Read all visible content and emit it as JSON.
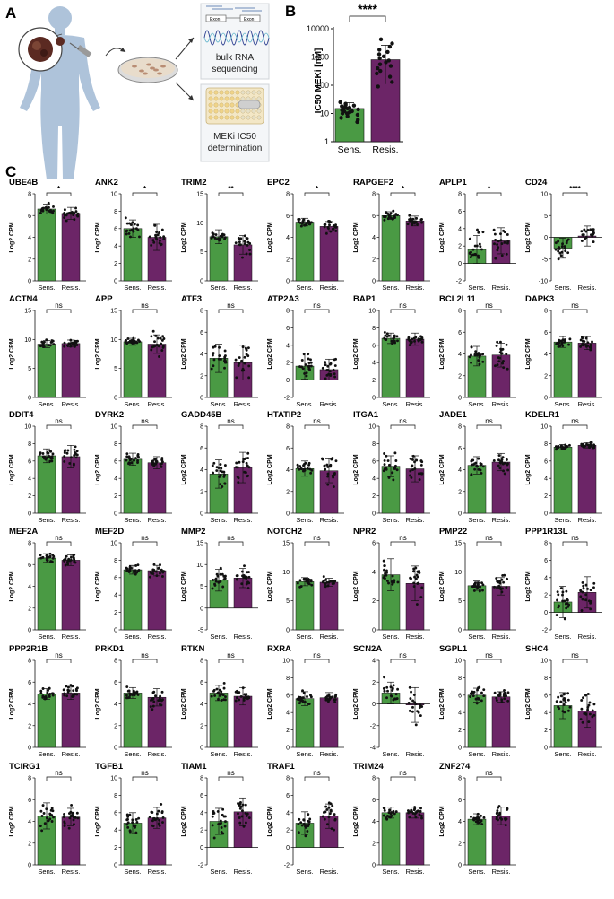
{
  "colors": {
    "sens": "#4a9a44",
    "resis": "#6c2567",
    "text": "#111111",
    "body": "#aec3da",
    "dish": "#e8dccb",
    "well": "#f0d48a"
  },
  "panel_a": {
    "letter": "A",
    "labels": {
      "rna_line1": "bulk RNA",
      "rna_line2": "sequencing",
      "ic50_line1": "MEKi IC50",
      "ic50_line2": "determination",
      "exon1": "Exon",
      "exon2": "Exon"
    }
  },
  "panel_b": {
    "letter": "B",
    "chart_data": {
      "type": "bar",
      "title": "",
      "ylabel": "IC50 MEKi [nM]",
      "yscale": "log",
      "ylim": [
        1,
        10000
      ],
      "ytick_labels": [
        "1",
        "10",
        "100",
        "1000",
        "10000"
      ],
      "categories": [
        "Sens.",
        "Resis."
      ],
      "values": [
        15,
        800
      ],
      "sd_low": [
        9,
        110
      ],
      "sd_high": [
        24,
        2600
      ],
      "points": [
        [
          5,
          6,
          7,
          8,
          9,
          10,
          10,
          11,
          12,
          12,
          13,
          14,
          15,
          15,
          16,
          17,
          18,
          19,
          20,
          22,
          25
        ],
        [
          90,
          130,
          200,
          260,
          320,
          400,
          480,
          550,
          650,
          750,
          900,
          1050,
          1250,
          1500,
          1800,
          2300,
          3000,
          4200
        ]
      ],
      "significance": "****"
    }
  },
  "panel_c": {
    "letter": "C",
    "ylabel": "Log2 CPM",
    "categories": [
      "Sens.",
      "Resis."
    ],
    "chart_data": [
      {
        "type": "bar",
        "title": "UBE4B",
        "ylim": [
          0,
          8
        ],
        "ticks": [
          "0",
          "2",
          "4",
          "6",
          "8"
        ],
        "values": [
          6.6,
          6.2
        ],
        "sd": [
          0.45,
          0.55
        ],
        "spread": [
          0.5,
          0.6
        ],
        "sig": "*"
      },
      {
        "type": "bar",
        "title": "ANK2",
        "ylim": [
          0,
          10
        ],
        "ticks": [
          "0",
          "2",
          "4",
          "6",
          "8",
          "10"
        ],
        "values": [
          6.0,
          5.0
        ],
        "sd": [
          1.0,
          1.5
        ],
        "spread": [
          1.0,
          1.6
        ],
        "sig": "*"
      },
      {
        "type": "bar",
        "title": "TRIM2",
        "ylim": [
          0,
          15
        ],
        "ticks": [
          "0",
          "5",
          "10",
          "15"
        ],
        "values": [
          7.6,
          6.2
        ],
        "sd": [
          1.2,
          1.6
        ],
        "spread": [
          1.2,
          1.7
        ],
        "sig": "**"
      },
      {
        "type": "bar",
        "title": "EPC2",
        "ylim": [
          0,
          8
        ],
        "ticks": [
          "0",
          "2",
          "4",
          "6",
          "8"
        ],
        "values": [
          5.4,
          5.0
        ],
        "sd": [
          0.35,
          0.45
        ],
        "spread": [
          0.4,
          0.5
        ],
        "sig": "*"
      },
      {
        "type": "bar",
        "title": "RAPGEF2",
        "ylim": [
          0,
          8
        ],
        "ticks": [
          "0",
          "2",
          "4",
          "6",
          "8"
        ],
        "values": [
          6.0,
          5.5
        ],
        "sd": [
          0.35,
          0.45
        ],
        "spread": [
          0.35,
          0.45
        ],
        "sig": "*"
      },
      {
        "type": "bar",
        "title": "APLP1",
        "ylim": [
          -2,
          8
        ],
        "ticks": [
          "-2",
          "0",
          "2",
          "4",
          "6",
          "8"
        ],
        "values": [
          1.6,
          2.6
        ],
        "sd": [
          1.6,
          1.5
        ],
        "spread": [
          1.7,
          1.6
        ],
        "sig": "*"
      },
      {
        "type": "bar",
        "title": "CD24",
        "ylim": [
          -10,
          10
        ],
        "ticks": [
          "-10",
          "-5",
          "0",
          "5",
          "10"
        ],
        "values": [
          -2.5,
          0.3
        ],
        "sd": [
          2.3,
          2.3
        ],
        "spread": [
          2.5,
          2.6
        ],
        "sig": "****"
      },
      {
        "type": "bar",
        "title": "ACTN4",
        "ylim": [
          0,
          15
        ],
        "ticks": [
          "0",
          "5",
          "10",
          "15"
        ],
        "values": [
          9.2,
          9.3
        ],
        "sd": [
          0.6,
          0.6
        ],
        "spread": [
          0.6,
          0.6
        ],
        "sig": "ns"
      },
      {
        "type": "bar",
        "title": "APP",
        "ylim": [
          0,
          15
        ],
        "ticks": [
          "0",
          "5",
          "10",
          "15"
        ],
        "values": [
          9.6,
          9.2
        ],
        "sd": [
          0.6,
          1.6
        ],
        "spread": [
          0.6,
          1.8
        ],
        "sig": "ns"
      },
      {
        "type": "bar",
        "title": "ATF3",
        "ylim": [
          0,
          8
        ],
        "ticks": [
          "0",
          "2",
          "4",
          "6",
          "8"
        ],
        "values": [
          3.6,
          3.2
        ],
        "sd": [
          1.3,
          1.6
        ],
        "spread": [
          1.3,
          1.6
        ],
        "sig": "ns"
      },
      {
        "type": "bar",
        "title": "ATP2A3",
        "ylim": [
          -2,
          8
        ],
        "ticks": [
          "-2",
          "0",
          "2",
          "4",
          "6",
          "8"
        ],
        "values": [
          1.6,
          1.2
        ],
        "sd": [
          1.5,
          1.2
        ],
        "spread": [
          1.4,
          1.2
        ],
        "sig": "ns"
      },
      {
        "type": "bar",
        "title": "BAP1",
        "ylim": [
          0,
          10
        ],
        "ticks": [
          "0",
          "2",
          "4",
          "6",
          "8",
          "10"
        ],
        "values": [
          6.8,
          6.7
        ],
        "sd": [
          0.6,
          0.7
        ],
        "spread": [
          0.6,
          0.7
        ],
        "sig": "ns"
      },
      {
        "type": "bar",
        "title": "BCL2L11",
        "ylim": [
          0,
          8
        ],
        "ticks": [
          "0",
          "2",
          "4",
          "6",
          "8"
        ],
        "values": [
          3.8,
          3.9
        ],
        "sd": [
          0.9,
          1.1
        ],
        "spread": [
          0.9,
          1.1
        ],
        "sig": "ns"
      },
      {
        "type": "bar",
        "title": "DAPK3",
        "ylim": [
          0,
          8
        ],
        "ticks": [
          "0",
          "2",
          "4",
          "6",
          "8"
        ],
        "values": [
          5.1,
          5.0
        ],
        "sd": [
          0.5,
          0.6
        ],
        "spread": [
          0.5,
          0.6
        ],
        "sig": "ns"
      },
      {
        "type": "bar",
        "title": "DDIT4",
        "ylim": [
          0,
          10
        ],
        "ticks": [
          "0",
          "2",
          "4",
          "6",
          "8",
          "10"
        ],
        "values": [
          6.6,
          6.5
        ],
        "sd": [
          0.8,
          1.3
        ],
        "spread": [
          0.8,
          1.3
        ],
        "sig": "ns"
      },
      {
        "type": "bar",
        "title": "DYRK2",
        "ylim": [
          0,
          10
        ],
        "ticks": [
          "0",
          "2",
          "4",
          "6",
          "8",
          "10"
        ],
        "values": [
          6.2,
          5.8
        ],
        "sd": [
          0.7,
          0.7
        ],
        "spread": [
          0.7,
          0.7
        ],
        "sig": "ns"
      },
      {
        "type": "bar",
        "title": "GADD45B",
        "ylim": [
          0,
          8
        ],
        "ticks": [
          "0",
          "2",
          "4",
          "6",
          "8"
        ],
        "values": [
          3.6,
          4.2
        ],
        "sd": [
          1.3,
          1.4
        ],
        "spread": [
          1.4,
          1.4
        ],
        "sig": "ns"
      },
      {
        "type": "bar",
        "title": "HTATIP2",
        "ylim": [
          0,
          8
        ],
        "ticks": [
          "0",
          "2",
          "4",
          "6",
          "8"
        ],
        "values": [
          4.1,
          3.9
        ],
        "sd": [
          0.7,
          1.1
        ],
        "spread": [
          0.7,
          1.3
        ],
        "sig": "ns"
      },
      {
        "type": "bar",
        "title": "ITGA1",
        "ylim": [
          0,
          10
        ],
        "ticks": [
          "0",
          "2",
          "4",
          "6",
          "8",
          "10"
        ],
        "values": [
          5.4,
          5.1
        ],
        "sd": [
          1.2,
          1.5
        ],
        "spread": [
          1.2,
          1.5
        ],
        "sig": "ns"
      },
      {
        "type": "bar",
        "title": "JADE1",
        "ylim": [
          0,
          8
        ],
        "ticks": [
          "0",
          "2",
          "4",
          "6",
          "8"
        ],
        "values": [
          4.4,
          4.7
        ],
        "sd": [
          0.8,
          0.8
        ],
        "spread": [
          0.8,
          0.8
        ],
        "sig": "ns"
      },
      {
        "type": "bar",
        "title": "KDELR1",
        "ylim": [
          0,
          10
        ],
        "ticks": [
          "0",
          "2",
          "4",
          "6",
          "8",
          "10"
        ],
        "values": [
          7.6,
          7.8
        ],
        "sd": [
          0.3,
          0.3
        ],
        "spread": [
          0.3,
          0.3
        ],
        "sig": "ns"
      },
      {
        "type": "bar",
        "title": "MEF2A",
        "ylim": [
          0,
          8
        ],
        "ticks": [
          "0",
          "2",
          "4",
          "6",
          "8"
        ],
        "values": [
          6.6,
          6.4
        ],
        "sd": [
          0.4,
          0.5
        ],
        "spread": [
          0.4,
          0.5
        ],
        "sig": "ns"
      },
      {
        "type": "bar",
        "title": "MEF2D",
        "ylim": [
          0,
          10
        ],
        "ticks": [
          "0",
          "2",
          "4",
          "6",
          "8",
          "10"
        ],
        "values": [
          6.9,
          6.8
        ],
        "sd": [
          0.5,
          0.6
        ],
        "spread": [
          0.5,
          0.6
        ],
        "sig": "ns"
      },
      {
        "type": "bar",
        "title": "MMP2",
        "ylim": [
          -5,
          15
        ],
        "ticks": [
          "-5",
          "0",
          "5",
          "10",
          "15"
        ],
        "values": [
          6.4,
          6.9
        ],
        "sd": [
          2.5,
          2.2
        ],
        "spread": [
          2.5,
          2.3
        ],
        "sig": "ns"
      },
      {
        "type": "bar",
        "title": "NOTCH2",
        "ylim": [
          0,
          15
        ],
        "ticks": [
          "0",
          "5",
          "10",
          "15"
        ],
        "values": [
          8.3,
          8.2
        ],
        "sd": [
          0.7,
          0.7
        ],
        "spread": [
          0.7,
          0.7
        ],
        "sig": "ns"
      },
      {
        "type": "bar",
        "title": "NPR2",
        "ylim": [
          0,
          6
        ],
        "ticks": [
          "0",
          "2",
          "4",
          "6"
        ],
        "values": [
          3.8,
          3.2
        ],
        "sd": [
          1.1,
          1.2
        ],
        "spread": [
          1.2,
          1.3
        ],
        "sig": "ns"
      },
      {
        "type": "bar",
        "title": "PMP22",
        "ylim": [
          0,
          15
        ],
        "ticks": [
          "0",
          "5",
          "10",
          "15"
        ],
        "values": [
          7.6,
          7.5
        ],
        "sd": [
          0.8,
          1.5
        ],
        "spread": [
          0.8,
          1.5
        ],
        "sig": "ns"
      },
      {
        "type": "bar",
        "title": "PPP1R13L",
        "ylim": [
          -2,
          8
        ],
        "ticks": [
          "-2",
          "0",
          "2",
          "4",
          "6",
          "8"
        ],
        "values": [
          1.2,
          2.3
        ],
        "sd": [
          1.8,
          1.8
        ],
        "spread": [
          1.8,
          1.9
        ],
        "sig": "ns"
      },
      {
        "type": "bar",
        "title": "PPP2R1B",
        "ylim": [
          0,
          8
        ],
        "ticks": [
          "0",
          "2",
          "4",
          "6",
          "8"
        ],
        "values": [
          4.9,
          5.0
        ],
        "sd": [
          0.5,
          0.6
        ],
        "spread": [
          0.5,
          0.6
        ],
        "sig": "ns"
      },
      {
        "type": "bar",
        "title": "PRKD1",
        "ylim": [
          0,
          8
        ],
        "ticks": [
          "0",
          "2",
          "4",
          "6",
          "8"
        ],
        "values": [
          5.0,
          4.6
        ],
        "sd": [
          0.5,
          0.8
        ],
        "spread": [
          0.5,
          0.9
        ],
        "sig": "ns"
      },
      {
        "type": "bar",
        "title": "RTKN",
        "ylim": [
          0,
          8
        ],
        "ticks": [
          "0",
          "2",
          "4",
          "6",
          "8"
        ],
        "values": [
          5.0,
          4.7
        ],
        "sd": [
          0.7,
          0.8
        ],
        "spread": [
          0.7,
          0.8
        ],
        "sig": "ns"
      },
      {
        "type": "bar",
        "title": "RXRA",
        "ylim": [
          0,
          10
        ],
        "ticks": [
          "0",
          "2",
          "4",
          "6",
          "8",
          "10"
        ],
        "values": [
          5.6,
          5.7
        ],
        "sd": [
          0.8,
          0.6
        ],
        "spread": [
          0.8,
          0.6
        ],
        "sig": "ns"
      },
      {
        "type": "bar",
        "title": "SCN2A",
        "ylim": [
          -4,
          4
        ],
        "ticks": [
          "-4",
          "-2",
          "0",
          "2",
          "4"
        ],
        "values": [
          1.0,
          -0.1
        ],
        "sd": [
          1.0,
          1.6
        ],
        "spread": [
          1.0,
          1.7
        ],
        "sig": "ns"
      },
      {
        "type": "bar",
        "title": "SGPL1",
        "ylim": [
          0,
          10
        ],
        "ticks": [
          "0",
          "2",
          "4",
          "6",
          "8",
          "10"
        ],
        "values": [
          6.0,
          5.8
        ],
        "sd": [
          0.8,
          0.6
        ],
        "spread": [
          0.8,
          0.6
        ],
        "sig": "ns"
      },
      {
        "type": "bar",
        "title": "SHC4",
        "ylim": [
          0,
          10
        ],
        "ticks": [
          "0",
          "2",
          "4",
          "6",
          "8",
          "10"
        ],
        "values": [
          4.8,
          4.2
        ],
        "sd": [
          1.5,
          1.9
        ],
        "spread": [
          1.6,
          2.0
        ],
        "sig": "ns"
      },
      {
        "type": "bar",
        "title": "TCIRG1",
        "ylim": [
          0,
          8
        ],
        "ticks": [
          "0",
          "2",
          "4",
          "6",
          "8"
        ],
        "values": [
          4.5,
          4.4
        ],
        "sd": [
          1.2,
          0.8
        ],
        "spread": [
          1.2,
          0.8
        ],
        "sig": "ns"
      },
      {
        "type": "bar",
        "title": "TGFB1",
        "ylim": [
          0,
          10
        ],
        "ticks": [
          "0",
          "2",
          "4",
          "6",
          "8",
          "10"
        ],
        "values": [
          4.8,
          5.4
        ],
        "sd": [
          1.2,
          1.2
        ],
        "spread": [
          1.2,
          1.2
        ],
        "sig": "ns"
      },
      {
        "type": "bar",
        "title": "TIAM1",
        "ylim": [
          -2,
          8
        ],
        "ticks": [
          "-2",
          "0",
          "2",
          "4",
          "6",
          "8"
        ],
        "values": [
          3.0,
          4.1
        ],
        "sd": [
          1.5,
          1.6
        ],
        "spread": [
          1.6,
          1.6
        ],
        "sig": "ns"
      },
      {
        "type": "bar",
        "title": "TRAF1",
        "ylim": [
          -2,
          8
        ],
        "ticks": [
          "-2",
          "0",
          "2",
          "4",
          "6",
          "8"
        ],
        "values": [
          2.8,
          3.6
        ],
        "sd": [
          1.3,
          1.4
        ],
        "spread": [
          1.3,
          1.6
        ],
        "sig": "ns"
      },
      {
        "type": "bar",
        "title": "TRIM24",
        "ylim": [
          0,
          8
        ],
        "ticks": [
          "0",
          "2",
          "4",
          "6",
          "8"
        ],
        "values": [
          4.8,
          4.8
        ],
        "sd": [
          0.5,
          0.5
        ],
        "spread": [
          0.5,
          0.5
        ],
        "sig": "ns"
      },
      {
        "type": "bar",
        "title": "ZNF274",
        "ylim": [
          0,
          8
        ],
        "ticks": [
          "0",
          "2",
          "4",
          "6",
          "8"
        ],
        "values": [
          4.2,
          4.5
        ],
        "sd": [
          0.5,
          0.8
        ],
        "spread": [
          0.5,
          0.8
        ],
        "sig": "ns"
      }
    ]
  }
}
